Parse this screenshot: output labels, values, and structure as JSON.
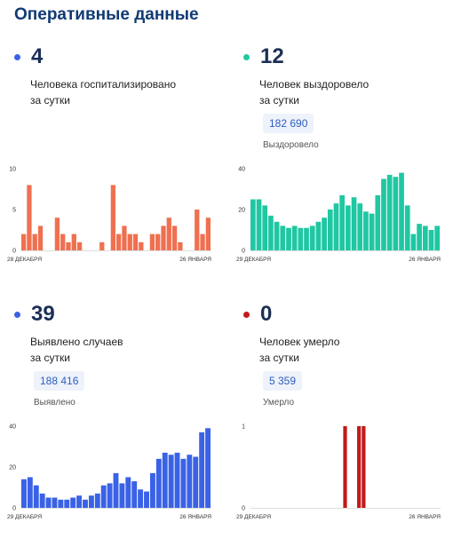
{
  "page": {
    "title": "Оперативные данные"
  },
  "colors": {
    "orange": "#ef7050",
    "teal": "#1fc7a2",
    "blue": "#3a62e6",
    "red": "#c11a1a"
  },
  "panels": [
    {
      "value": "4",
      "line1": "Человека госпитализировано",
      "line2": "за сутки",
      "total": "",
      "total_label": ""
    },
    {
      "value": "12",
      "line1": "Человек выздоровело",
      "line2": "за сутки",
      "total": "182 690",
      "total_label": "Выздоровело"
    },
    {
      "value": "39",
      "line1": "Выявлено случаев",
      "line2": "за сутки",
      "total": "188 416",
      "total_label": "Выявлено"
    },
    {
      "value": "0",
      "line1": "Человек умерло",
      "line2": "за сутки",
      "total": "5 359",
      "total_label": "Умерло"
    }
  ],
  "chart_data": [
    {
      "type": "bar",
      "color": "orange",
      "x_start": "28 ДЕКАБРЯ",
      "x_end": "26 ЯНВАРЯ",
      "yticks": [
        0,
        5,
        10
      ],
      "ylim": [
        0,
        10
      ],
      "values": [
        2,
        8,
        2,
        3,
        0,
        0,
        4,
        2,
        1,
        2,
        1,
        0,
        0,
        0,
        1,
        0,
        8,
        2,
        3,
        2,
        2,
        1,
        0,
        2,
        2,
        3,
        4,
        3,
        1,
        0,
        0,
        5,
        2,
        4
      ]
    },
    {
      "type": "bar",
      "color": "teal",
      "x_start": "29 ДЕКАБРЯ",
      "x_end": "26 ЯНВАРЯ",
      "yticks": [
        0,
        20,
        40
      ],
      "ylim": [
        0,
        40
      ],
      "values": [
        25,
        25,
        22,
        17,
        14,
        12,
        11,
        12,
        11,
        11,
        12,
        14,
        16,
        20,
        23,
        27,
        22,
        26,
        23,
        19,
        18,
        27,
        35,
        37,
        36,
        38,
        22,
        8,
        13,
        12,
        10,
        12
      ]
    },
    {
      "type": "bar",
      "color": "blue",
      "x_start": "29 ДЕКАБРЯ",
      "x_end": "26 ЯНВАРЯ",
      "yticks": [
        0,
        20,
        40
      ],
      "ylim": [
        0,
        40
      ],
      "values": [
        14,
        15,
        11,
        7,
        5,
        5,
        4,
        4,
        5,
        6,
        4,
        6,
        7,
        11,
        12,
        17,
        12,
        15,
        13,
        9,
        8,
        17,
        24,
        27,
        26,
        27,
        24,
        26,
        25,
        37,
        39
      ]
    },
    {
      "type": "bar",
      "color": "red",
      "x_start": "29 ДЕКАБРЯ",
      "x_end": "26 ЯНВАРЯ",
      "yticks": [
        0,
        1
      ],
      "ylim": [
        0,
        1
      ],
      "values": [
        0,
        0,
        0,
        0,
        0,
        0,
        0,
        0,
        0,
        0,
        0,
        0,
        0,
        0,
        0,
        0,
        0,
        0,
        0,
        0,
        1,
        0,
        0,
        1,
        1,
        0,
        0,
        0,
        0,
        0,
        0,
        0,
        0,
        0,
        0,
        0,
        0,
        0,
        0,
        0,
        0
      ]
    }
  ]
}
